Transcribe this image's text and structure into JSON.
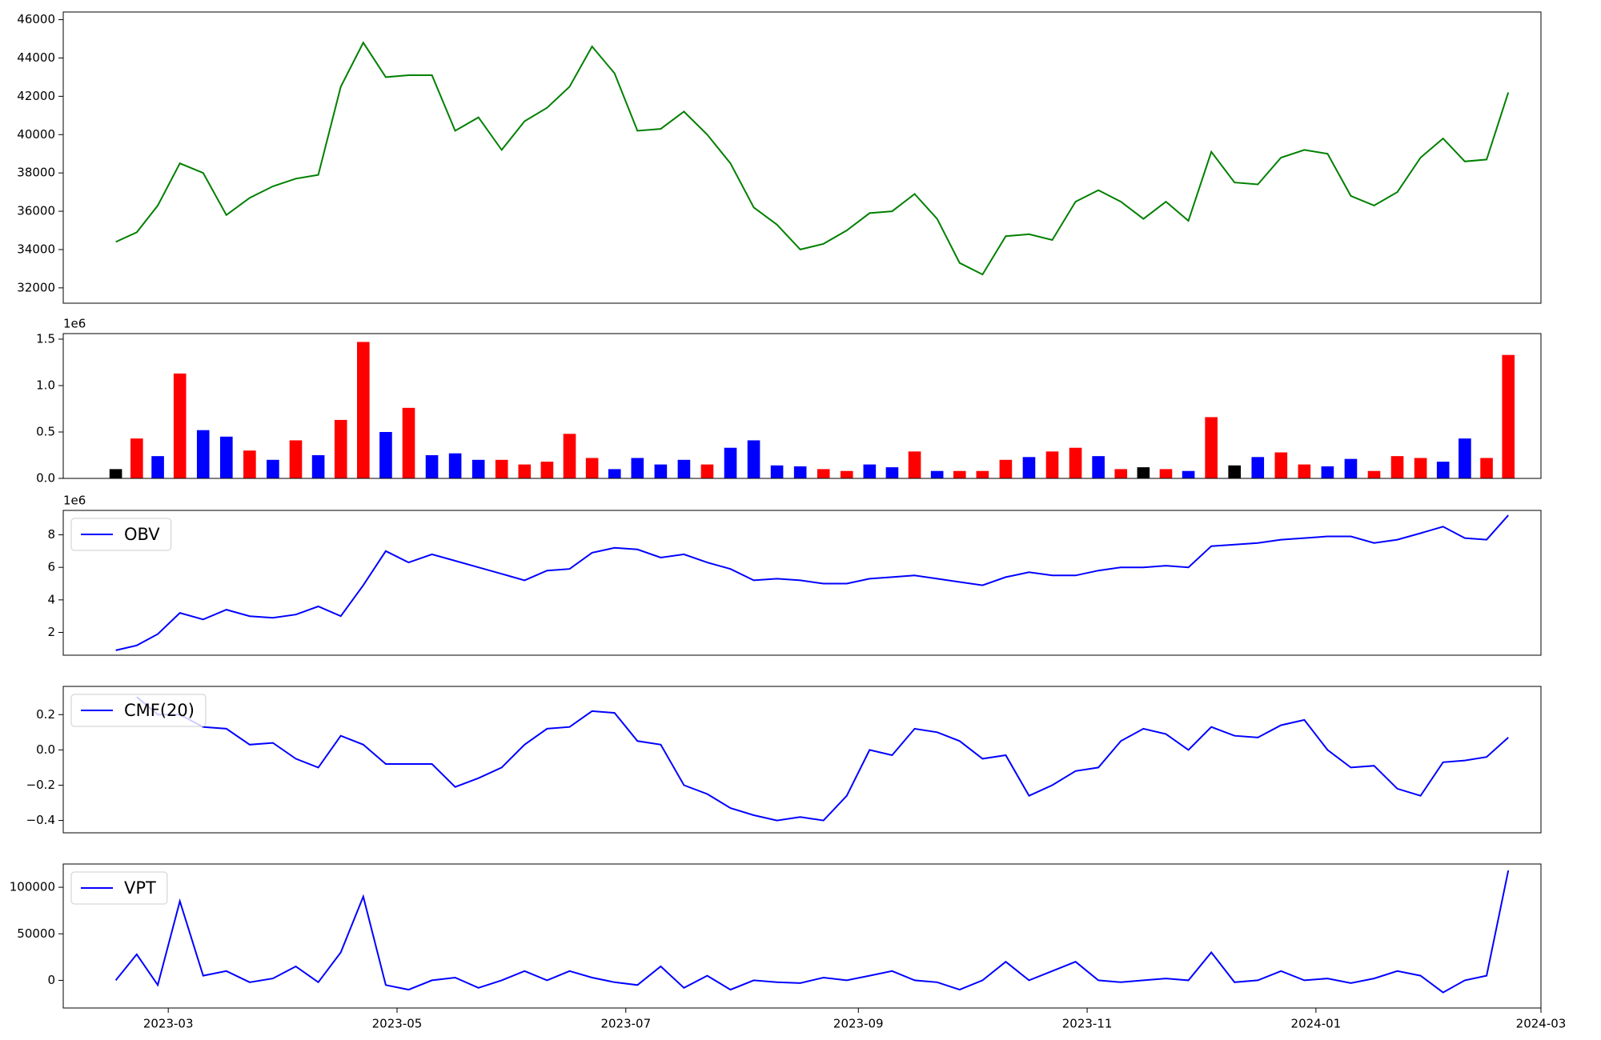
{
  "chart_data": [
    {
      "type": "line",
      "x": [
        "2023-02",
        "2023-02",
        "2023-02",
        "2023-02",
        "2023-02",
        "2023-03",
        "2023-03",
        "2023-03",
        "2023-03",
        "2023-03",
        "2023-04",
        "2023-04",
        "2023-04",
        "2023-04",
        "2023-04",
        "2023-05",
        "2023-05",
        "2023-05",
        "2023-05",
        "2023-05",
        "2023-06",
        "2023-06",
        "2023-06",
        "2023-06",
        "2023-06",
        "2023-07",
        "2023-07",
        "2023-07",
        "2023-07",
        "2023-07",
        "2023-08",
        "2023-08",
        "2023-08",
        "2023-08",
        "2023-08",
        "2023-09",
        "2023-09",
        "2023-09",
        "2023-09",
        "2023-09",
        "2023-10",
        "2023-10",
        "2023-10",
        "2023-10",
        "2023-10",
        "2023-11",
        "2023-11",
        "2023-11",
        "2023-11",
        "2023-11",
        "2023-12",
        "2023-12",
        "2023-12",
        "2023-12",
        "2023-12",
        "2024-01",
        "2024-01",
        "2024-01",
        "2024-01",
        "2024-01",
        "2024-02",
        "2024-02",
        "2024-02",
        "2024-02",
        "2024-02"
      ],
      "series": [
        {
          "color": "green",
          "values": [
            null,
            null,
            34400,
            34900,
            36300,
            38500,
            38000,
            35800,
            36700,
            37300,
            37700,
            37900,
            42500,
            44800,
            43000,
            43100,
            43100,
            40200,
            40900,
            39200,
            40700,
            41400,
            42500,
            44600,
            43200,
            40200,
            40300,
            41200,
            40000,
            38500,
            36200,
            35300,
            34000,
            34300,
            35000,
            35900,
            36000,
            36900,
            35600,
            33300,
            32700,
            34700,
            34800,
            34500,
            36500,
            37100,
            36500,
            35600,
            36500,
            35500,
            39100,
            37500,
            37400,
            38800,
            39200,
            39000,
            36800,
            36300,
            37000,
            38800,
            39800,
            38600,
            38700,
            42200,
            null
          ]
        }
      ],
      "xlim": [
        "2023-02",
        "2024-03"
      ],
      "ylim": [
        31200,
        46400
      ],
      "yticks": [
        32000,
        34000,
        36000,
        38000,
        40000,
        42000,
        44000,
        46000
      ]
    },
    {
      "type": "bar",
      "x": [
        "2023-02",
        "2023-02",
        "2023-02",
        "2023-02",
        "2023-02",
        "2023-03",
        "2023-03",
        "2023-03",
        "2023-03",
        "2023-03",
        "2023-04",
        "2023-04",
        "2023-04",
        "2023-04",
        "2023-04",
        "2023-05",
        "2023-05",
        "2023-05",
        "2023-05",
        "2023-05",
        "2023-06",
        "2023-06",
        "2023-06",
        "2023-06",
        "2023-06",
        "2023-07",
        "2023-07",
        "2023-07",
        "2023-07",
        "2023-07",
        "2023-08",
        "2023-08",
        "2023-08",
        "2023-08",
        "2023-08",
        "2023-09",
        "2023-09",
        "2023-09",
        "2023-09",
        "2023-09",
        "2023-10",
        "2023-10",
        "2023-10",
        "2023-10",
        "2023-10",
        "2023-11",
        "2023-11",
        "2023-11",
        "2023-11",
        "2023-11",
        "2023-12",
        "2023-12",
        "2023-12",
        "2023-12",
        "2023-12",
        "2024-01",
        "2024-01",
        "2024-01",
        "2024-01",
        "2024-01",
        "2024-02",
        "2024-02",
        "2024-02",
        "2024-02",
        "2024-02"
      ],
      "series": [
        {
          "colors": [
            null,
            null,
            "black",
            "red",
            "blue",
            "red",
            "blue",
            "blue",
            "red",
            "blue",
            "red",
            "blue",
            "red",
            "red",
            "blue",
            "red",
            "blue",
            "blue",
            "blue",
            "red",
            "red",
            "red",
            "red",
            "red",
            "blue",
            "blue",
            "blue",
            "blue",
            "red",
            "blue",
            "blue",
            "blue",
            "blue",
            "red",
            "red",
            "blue",
            "blue",
            "red",
            "blue",
            "red",
            "red",
            "red",
            "blue",
            "red",
            "red",
            "blue",
            "red",
            "black",
            "red",
            "blue",
            "red",
            "black",
            "blue",
            "red",
            "red",
            "blue",
            "blue",
            "red",
            "red",
            "red",
            "blue",
            "blue",
            "red",
            "red",
            null
          ],
          "values": [
            null,
            null,
            100000,
            430000,
            240000,
            1130000,
            520000,
            450000,
            300000,
            200000,
            410000,
            250000,
            630000,
            1470000,
            500000,
            760000,
            250000,
            270000,
            200000,
            200000,
            150000,
            180000,
            480000,
            220000,
            100000,
            220000,
            150000,
            200000,
            150000,
            330000,
            410000,
            140000,
            130000,
            100000,
            80000,
            150000,
            120000,
            290000,
            80000,
            80000,
            80000,
            200000,
            230000,
            290000,
            330000,
            240000,
            100000,
            120000,
            100000,
            80000,
            660000,
            140000,
            230000,
            280000,
            150000,
            130000,
            210000,
            80000,
            240000,
            220000,
            180000,
            430000,
            220000,
            1330000,
            null
          ]
        }
      ],
      "xlim": [
        "2023-02",
        "2024-03"
      ],
      "ylim": [
        0,
        1560000
      ],
      "offset_label": "1e6",
      "yticks": [
        {
          "value": 0,
          "label": "0.0"
        },
        {
          "value": 500000,
          "label": "0.5"
        },
        {
          "value": 1000000,
          "label": "1.0"
        },
        {
          "value": 1500000,
          "label": "1.5"
        }
      ]
    },
    {
      "type": "line",
      "x": [
        "2023-02",
        "2023-02",
        "2023-02",
        "2023-02",
        "2023-02",
        "2023-03",
        "2023-03",
        "2023-03",
        "2023-03",
        "2023-03",
        "2023-04",
        "2023-04",
        "2023-04",
        "2023-04",
        "2023-04",
        "2023-05",
        "2023-05",
        "2023-05",
        "2023-05",
        "2023-05",
        "2023-06",
        "2023-06",
        "2023-06",
        "2023-06",
        "2023-06",
        "2023-07",
        "2023-07",
        "2023-07",
        "2023-07",
        "2023-07",
        "2023-08",
        "2023-08",
        "2023-08",
        "2023-08",
        "2023-08",
        "2023-09",
        "2023-09",
        "2023-09",
        "2023-09",
        "2023-09",
        "2023-10",
        "2023-10",
        "2023-10",
        "2023-10",
        "2023-10",
        "2023-11",
        "2023-11",
        "2023-11",
        "2023-11",
        "2023-11",
        "2023-12",
        "2023-12",
        "2023-12",
        "2023-12",
        "2023-12",
        "2024-01",
        "2024-01",
        "2024-01",
        "2024-01",
        "2024-01",
        "2024-02",
        "2024-02",
        "2024-02",
        "2024-02",
        "2024-02"
      ],
      "series": [
        {
          "name": "OBV",
          "color": "blue",
          "values": [
            null,
            null,
            900000,
            1200000,
            1900000,
            3200000,
            2800000,
            3400000,
            3000000,
            2900000,
            3100000,
            3600000,
            3000000,
            4900000,
            7000000,
            6300000,
            6800000,
            6400000,
            6000000,
            5600000,
            5200000,
            5800000,
            5900000,
            6900000,
            7200000,
            7100000,
            6600000,
            6800000,
            6300000,
            5900000,
            5200000,
            5300000,
            5200000,
            5000000,
            5000000,
            5300000,
            5400000,
            5500000,
            5300000,
            5100000,
            4900000,
            5400000,
            5700000,
            5500000,
            5500000,
            5800000,
            6000000,
            6000000,
            6100000,
            6000000,
            7300000,
            7400000,
            7500000,
            7700000,
            7800000,
            7900000,
            7900000,
            7500000,
            7700000,
            8100000,
            8500000,
            7800000,
            7700000,
            9200000,
            null
          ]
        }
      ],
      "xlim": [
        "2023-02",
        "2024-03"
      ],
      "ylim": [
        600000,
        9500000
      ],
      "offset_label": "1e6",
      "legend": "upper left",
      "yticks": [
        {
          "value": 2000000,
          "label": "2"
        },
        {
          "value": 4000000,
          "label": "4"
        },
        {
          "value": 6000000,
          "label": "6"
        },
        {
          "value": 8000000,
          "label": "8"
        }
      ]
    },
    {
      "type": "line",
      "x": [
        "2023-02",
        "2023-02",
        "2023-02",
        "2023-02",
        "2023-02",
        "2023-03",
        "2023-03",
        "2023-03",
        "2023-03",
        "2023-03",
        "2023-04",
        "2023-04",
        "2023-04",
        "2023-04",
        "2023-04",
        "2023-05",
        "2023-05",
        "2023-05",
        "2023-05",
        "2023-05",
        "2023-06",
        "2023-06",
        "2023-06",
        "2023-06",
        "2023-06",
        "2023-07",
        "2023-07",
        "2023-07",
        "2023-07",
        "2023-07",
        "2023-08",
        "2023-08",
        "2023-08",
        "2023-08",
        "2023-08",
        "2023-09",
        "2023-09",
        "2023-09",
        "2023-09",
        "2023-09",
        "2023-10",
        "2023-10",
        "2023-10",
        "2023-10",
        "2023-10",
        "2023-11",
        "2023-11",
        "2023-11",
        "2023-11",
        "2023-11",
        "2023-12",
        "2023-12",
        "2023-12",
        "2023-12",
        "2023-12",
        "2024-01",
        "2024-01",
        "2024-01",
        "2024-01",
        "2024-01",
        "2024-02",
        "2024-02",
        "2024-02",
        "2024-02",
        "2024-02"
      ],
      "series": [
        {
          "name": "CMF(20)",
          "color": "blue",
          "values": [
            null,
            null,
            null,
            0.3,
            0.2,
            0.2,
            0.13,
            0.12,
            0.03,
            0.04,
            -0.05,
            -0.1,
            0.08,
            0.03,
            -0.08,
            -0.08,
            -0.08,
            -0.21,
            -0.16,
            -0.1,
            0.03,
            0.12,
            0.13,
            0.22,
            0.21,
            0.05,
            0.03,
            -0.2,
            -0.25,
            -0.33,
            -0.37,
            -0.4,
            -0.38,
            -0.4,
            -0.26,
            0.0,
            -0.03,
            0.12,
            0.1,
            0.05,
            -0.05,
            -0.03,
            -0.26,
            -0.2,
            -0.12,
            -0.1,
            0.05,
            0.12,
            0.09,
            0.0,
            0.13,
            0.08,
            0.07,
            0.14,
            0.17,
            0.0,
            -0.1,
            -0.09,
            -0.22,
            -0.26,
            -0.07,
            -0.06,
            -0.04,
            0.07,
            null
          ]
        }
      ],
      "xlim": [
        "2023-02",
        "2024-03"
      ],
      "ylim": [
        -0.47,
        0.36
      ],
      "legend": "upper left",
      "yticks": [
        {
          "value": -0.4,
          "label": "−0.4"
        },
        {
          "value": -0.2,
          "label": "−0.2"
        },
        {
          "value": 0,
          "label": "0.0"
        },
        {
          "value": 0.2,
          "label": "0.2"
        }
      ]
    },
    {
      "type": "line",
      "x": [
        "2023-02",
        "2023-02",
        "2023-02",
        "2023-02",
        "2023-02",
        "2023-03",
        "2023-03",
        "2023-03",
        "2023-03",
        "2023-03",
        "2023-04",
        "2023-04",
        "2023-04",
        "2023-04",
        "2023-04",
        "2023-05",
        "2023-05",
        "2023-05",
        "2023-05",
        "2023-05",
        "2023-06",
        "2023-06",
        "2023-06",
        "2023-06",
        "2023-06",
        "2023-07",
        "2023-07",
        "2023-07",
        "2023-07",
        "2023-07",
        "2023-08",
        "2023-08",
        "2023-08",
        "2023-08",
        "2023-08",
        "2023-09",
        "2023-09",
        "2023-09",
        "2023-09",
        "2023-09",
        "2023-10",
        "2023-10",
        "2023-10",
        "2023-10",
        "2023-10",
        "2023-11",
        "2023-11",
        "2023-11",
        "2023-11",
        "2023-11",
        "2023-12",
        "2023-12",
        "2023-12",
        "2023-12",
        "2023-12",
        "2024-01",
        "2024-01",
        "2024-01",
        "2024-01",
        "2024-01",
        "2024-02",
        "2024-02",
        "2024-02",
        "2024-02",
        "2024-02"
      ],
      "series": [
        {
          "name": "VPT",
          "color": "blue",
          "values": [
            null,
            null,
            0,
            28000,
            -5000,
            85000,
            5000,
            10000,
            -2000,
            2000,
            15000,
            -2000,
            30000,
            90000,
            -5000,
            -10000,
            0,
            3000,
            -8000,
            0,
            10000,
            0,
            10000,
            3000,
            -2000,
            -5000,
            15000,
            -8000,
            5000,
            -10000,
            0,
            -2000,
            -3000,
            3000,
            0,
            5000,
            10000,
            0,
            -2000,
            -10000,
            0,
            20000,
            0,
            10000,
            20000,
            0,
            -2000,
            0,
            2000,
            0,
            30000,
            -2000,
            0,
            10000,
            0,
            2000,
            -3000,
            2000,
            10000,
            5000,
            -13000,
            0,
            5000,
            118000,
            null
          ]
        }
      ],
      "xlim": [
        "2023-02",
        "2024-03"
      ],
      "ylim": [
        -29700,
        125000
      ],
      "legend": "upper left",
      "yticks": [
        0,
        50000,
        100000
      ],
      "xticks": [
        "2023-03",
        "2023-05",
        "2023-07",
        "2023-09",
        "2023-11",
        "2024-01",
        "2024-03"
      ]
    }
  ]
}
